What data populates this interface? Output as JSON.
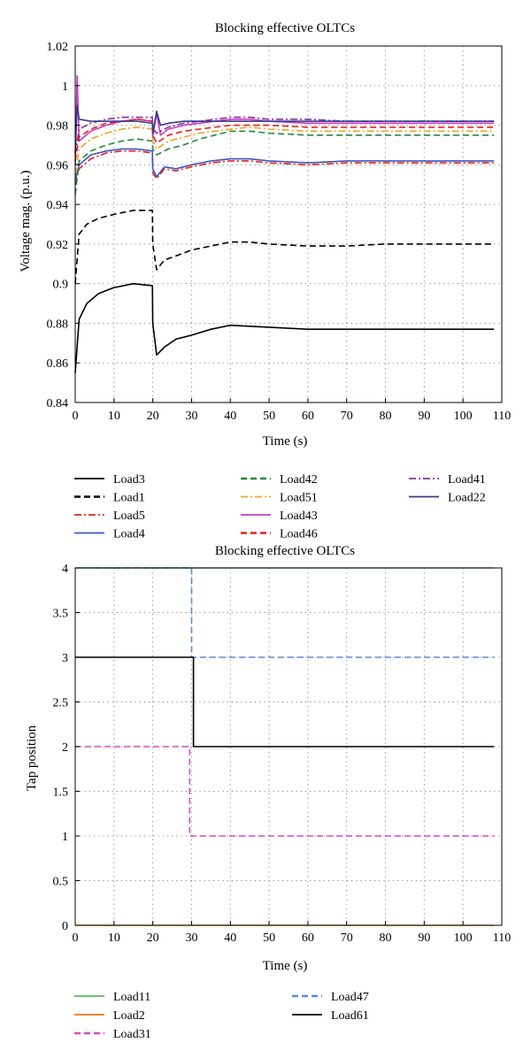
{
  "chart_data": [
    {
      "type": "line",
      "title": "Blocking effective OLTCs",
      "xlabel": "Time (s)",
      "ylabel": "Voltage mag. (p.u.)",
      "xlim": [
        0,
        110
      ],
      "ylim": [
        0.84,
        1.02
      ],
      "xticks": [
        "0",
        "10",
        "20",
        "30",
        "40",
        "50",
        "60",
        "70",
        "80",
        "90",
        "100",
        "110"
      ],
      "yticks": [
        "0.84",
        "0.86",
        "0.88",
        "0.9",
        "0.92",
        "0.94",
        "0.96",
        "0.98",
        "1",
        "1.02"
      ],
      "grid": true,
      "legend_position": "bottom",
      "series": [
        {
          "name": "Load3",
          "color": "#000000",
          "dash": "solid",
          "points": [
            [
              0,
              0.855
            ],
            [
              1,
              0.882
            ],
            [
              3,
              0.89
            ],
            [
              6,
              0.895
            ],
            [
              10,
              0.898
            ],
            [
              15,
              0.9
            ],
            [
              19.9,
              0.899
            ],
            [
              20,
              0.88
            ],
            [
              21,
              0.864
            ],
            [
              23,
              0.868
            ],
            [
              26,
              0.872
            ],
            [
              30,
              0.874
            ],
            [
              35,
              0.877
            ],
            [
              40,
              0.879
            ],
            [
              50,
              0.878
            ],
            [
              60,
              0.877
            ],
            [
              70,
              0.877
            ],
            [
              80,
              0.877
            ],
            [
              90,
              0.877
            ],
            [
              100,
              0.877
            ],
            [
              108,
              0.877
            ]
          ]
        },
        {
          "name": "Load1",
          "color": "#000000",
          "dash": "dashed",
          "points": [
            [
              0,
              0.9
            ],
            [
              1,
              0.925
            ],
            [
              3,
              0.93
            ],
            [
              6,
              0.933
            ],
            [
              10,
              0.935
            ],
            [
              15,
              0.937
            ],
            [
              19.9,
              0.937
            ],
            [
              20,
              0.92
            ],
            [
              21,
              0.907
            ],
            [
              23,
              0.912
            ],
            [
              26,
              0.914
            ],
            [
              30,
              0.917
            ],
            [
              35,
              0.919
            ],
            [
              40,
              0.921
            ],
            [
              45,
              0.921
            ],
            [
              50,
              0.92
            ],
            [
              60,
              0.919
            ],
            [
              70,
              0.919
            ],
            [
              80,
              0.92
            ],
            [
              90,
              0.92
            ],
            [
              100,
              0.92
            ],
            [
              108,
              0.92
            ]
          ]
        },
        {
          "name": "Load5",
          "color": "#e8201a",
          "dash": "dashdot",
          "points": [
            [
              0,
              0.95
            ],
            [
              1,
              0.958
            ],
            [
              4,
              0.963
            ],
            [
              8,
              0.966
            ],
            [
              12,
              0.967
            ],
            [
              16,
              0.967
            ],
            [
              19.9,
              0.966
            ],
            [
              20,
              0.956
            ],
            [
              21,
              0.953
            ],
            [
              23,
              0.958
            ],
            [
              26,
              0.957
            ],
            [
              30,
              0.959
            ],
            [
              35,
              0.961
            ],
            [
              40,
              0.962
            ],
            [
              45,
              0.962
            ],
            [
              50,
              0.961
            ],
            [
              60,
              0.96
            ],
            [
              70,
              0.961
            ],
            [
              80,
              0.961
            ],
            [
              90,
              0.961
            ],
            [
              100,
              0.961
            ],
            [
              108,
              0.961
            ]
          ]
        },
        {
          "name": "Load4",
          "color": "#3d55c2",
          "dash": "solid",
          "points": [
            [
              0,
              0.952
            ],
            [
              1,
              0.96
            ],
            [
              4,
              0.965
            ],
            [
              8,
              0.967
            ],
            [
              12,
              0.968
            ],
            [
              16,
              0.968
            ],
            [
              19.9,
              0.967
            ],
            [
              20,
              0.958
            ],
            [
              21,
              0.954
            ],
            [
              23,
              0.959
            ],
            [
              26,
              0.958
            ],
            [
              30,
              0.96
            ],
            [
              35,
              0.962
            ],
            [
              40,
              0.963
            ],
            [
              45,
              0.963
            ],
            [
              50,
              0.962
            ],
            [
              60,
              0.961
            ],
            [
              70,
              0.962
            ],
            [
              80,
              0.962
            ],
            [
              90,
              0.962
            ],
            [
              100,
              0.962
            ],
            [
              108,
              0.962
            ]
          ]
        },
        {
          "name": "Load42",
          "color": "#1f8a3a",
          "dash": "dashed",
          "points": [
            [
              0,
              0.945
            ],
            [
              1,
              0.962
            ],
            [
              4,
              0.967
            ],
            [
              8,
              0.97
            ],
            [
              12,
              0.972
            ],
            [
              16,
              0.973
            ],
            [
              19.9,
              0.972
            ],
            [
              20,
              0.968
            ],
            [
              21,
              0.965
            ],
            [
              24,
              0.968
            ],
            [
              28,
              0.97
            ],
            [
              32,
              0.973
            ],
            [
              36,
              0.975
            ],
            [
              40,
              0.977
            ],
            [
              45,
              0.977
            ],
            [
              50,
              0.976
            ],
            [
              60,
              0.975
            ],
            [
              70,
              0.975
            ],
            [
              80,
              0.975
            ],
            [
              90,
              0.975
            ],
            [
              100,
              0.975
            ],
            [
              108,
              0.975
            ]
          ]
        },
        {
          "name": "Load51",
          "color": "#f2a225",
          "dash": "dashdot",
          "points": [
            [
              0,
              0.955
            ],
            [
              1,
              0.968
            ],
            [
              4,
              0.973
            ],
            [
              8,
              0.976
            ],
            [
              12,
              0.978
            ],
            [
              16,
              0.979
            ],
            [
              19.9,
              0.978
            ],
            [
              20,
              0.972
            ],
            [
              21,
              0.968
            ],
            [
              24,
              0.972
            ],
            [
              28,
              0.974
            ],
            [
              32,
              0.976
            ],
            [
              36,
              0.977
            ],
            [
              40,
              0.978
            ],
            [
              45,
              0.979
            ],
            [
              50,
              0.978
            ],
            [
              60,
              0.977
            ],
            [
              70,
              0.977
            ],
            [
              80,
              0.977
            ],
            [
              90,
              0.977
            ],
            [
              100,
              0.977
            ],
            [
              108,
              0.977
            ]
          ]
        },
        {
          "name": "Load43",
          "color": "#c53bc6",
          "dash": "solid",
          "points": [
            [
              0,
              0.96
            ],
            [
              0.5,
              1.005
            ],
            [
              1,
              0.972
            ],
            [
              4,
              0.977
            ],
            [
              8,
              0.98
            ],
            [
              12,
              0.982
            ],
            [
              16,
              0.983
            ],
            [
              19.9,
              0.982
            ],
            [
              20,
              0.974
            ],
            [
              21,
              0.986
            ],
            [
              22,
              0.975
            ],
            [
              24,
              0.978
            ],
            [
              28,
              0.98
            ],
            [
              32,
              0.981
            ],
            [
              36,
              0.982
            ],
            [
              40,
              0.983
            ],
            [
              45,
              0.983
            ],
            [
              50,
              0.982
            ],
            [
              60,
              0.981
            ],
            [
              70,
              0.981
            ],
            [
              80,
              0.981
            ],
            [
              90,
              0.981
            ],
            [
              100,
              0.981
            ],
            [
              108,
              0.981
            ]
          ]
        },
        {
          "name": "Load46",
          "color": "#e8201a",
          "dash": "dashed",
          "points": [
            [
              0,
              0.962
            ],
            [
              1,
              0.974
            ],
            [
              4,
              0.978
            ],
            [
              8,
              0.981
            ],
            [
              12,
              0.982
            ],
            [
              16,
              0.983
            ],
            [
              19.9,
              0.982
            ],
            [
              20,
              0.975
            ],
            [
              21,
              0.971
            ],
            [
              24,
              0.975
            ],
            [
              28,
              0.977
            ],
            [
              32,
              0.978
            ],
            [
              36,
              0.979
            ],
            [
              40,
              0.98
            ],
            [
              45,
              0.98
            ],
            [
              50,
              0.98
            ],
            [
              60,
              0.979
            ],
            [
              70,
              0.979
            ],
            [
              80,
              0.979
            ],
            [
              90,
              0.979
            ],
            [
              100,
              0.979
            ],
            [
              108,
              0.979
            ]
          ]
        },
        {
          "name": "Load41",
          "color": "#8b2a9c",
          "dash": "dashdot",
          "points": [
            [
              0,
              0.965
            ],
            [
              1,
              0.978
            ],
            [
              4,
              0.981
            ],
            [
              8,
              0.983
            ],
            [
              12,
              0.984
            ],
            [
              16,
              0.984
            ],
            [
              19.9,
              0.984
            ],
            [
              20,
              0.978
            ],
            [
              21,
              0.976
            ],
            [
              24,
              0.979
            ],
            [
              28,
              0.981
            ],
            [
              32,
              0.982
            ],
            [
              36,
              0.983
            ],
            [
              40,
              0.984
            ],
            [
              45,
              0.984
            ],
            [
              50,
              0.983
            ],
            [
              60,
              0.983
            ],
            [
              70,
              0.982
            ],
            [
              80,
              0.982
            ],
            [
              90,
              0.982
            ],
            [
              100,
              0.982
            ],
            [
              108,
              0.982
            ]
          ]
        },
        {
          "name": "Load22",
          "color": "#3b3a8c",
          "dash": "solid",
          "points": [
            [
              0,
              0.966
            ],
            [
              0.5,
              0.99
            ],
            [
              1,
              0.983
            ],
            [
              4,
              0.982
            ],
            [
              8,
              0.982
            ],
            [
              12,
              0.982
            ],
            [
              16,
              0.982
            ],
            [
              19.9,
              0.981
            ],
            [
              20,
              0.976
            ],
            [
              21,
              0.987
            ],
            [
              22,
              0.98
            ],
            [
              24,
              0.981
            ],
            [
              28,
              0.982
            ],
            [
              32,
              0.982
            ],
            [
              36,
              0.982
            ],
            [
              40,
              0.982
            ],
            [
              45,
              0.982
            ],
            [
              50,
              0.982
            ],
            [
              60,
              0.982
            ],
            [
              70,
              0.982
            ],
            [
              80,
              0.982
            ],
            [
              90,
              0.982
            ],
            [
              100,
              0.982
            ],
            [
              108,
              0.982
            ]
          ]
        }
      ]
    },
    {
      "type": "line",
      "title": "Blocking effective OLTCs",
      "xlabel": "Time (s)",
      "ylabel": "Tap position",
      "xlim": [
        0,
        110
      ],
      "ylim": [
        0,
        4
      ],
      "xticks": [
        "0",
        "10",
        "20",
        "30",
        "40",
        "50",
        "60",
        "70",
        "80",
        "90",
        "100",
        "110"
      ],
      "yticks": [
        "0",
        "0.5",
        "1",
        "1.5",
        "2",
        "2.5",
        "3",
        "3.5",
        "4"
      ],
      "grid": true,
      "legend_position": "bottom",
      "series": [
        {
          "name": "Load11",
          "color": "#5cb85c",
          "dash": "solid",
          "points": [
            [
              0,
              4
            ],
            [
              108,
              4
            ]
          ]
        },
        {
          "name": "Load2",
          "color": "#e8761f",
          "dash": "solid",
          "points": [
            [
              0,
              0
            ],
            [
              108,
              0
            ]
          ]
        },
        {
          "name": "Load31",
          "color": "#d04ac9",
          "dash": "dashed",
          "points": [
            [
              0,
              2
            ],
            [
              29.5,
              2
            ],
            [
              29.5,
              1
            ],
            [
              108,
              1
            ]
          ]
        },
        {
          "name": "Load47",
          "color": "#5b8ad6",
          "dash": "dashed",
          "points": [
            [
              0,
              4
            ],
            [
              30,
              4
            ],
            [
              30,
              3
            ],
            [
              108,
              3
            ]
          ]
        },
        {
          "name": "Load61",
          "color": "#000000",
          "dash": "solid",
          "points": [
            [
              0,
              3
            ],
            [
              30.5,
              3
            ],
            [
              30.5,
              2
            ],
            [
              108,
              2
            ]
          ]
        }
      ]
    }
  ]
}
